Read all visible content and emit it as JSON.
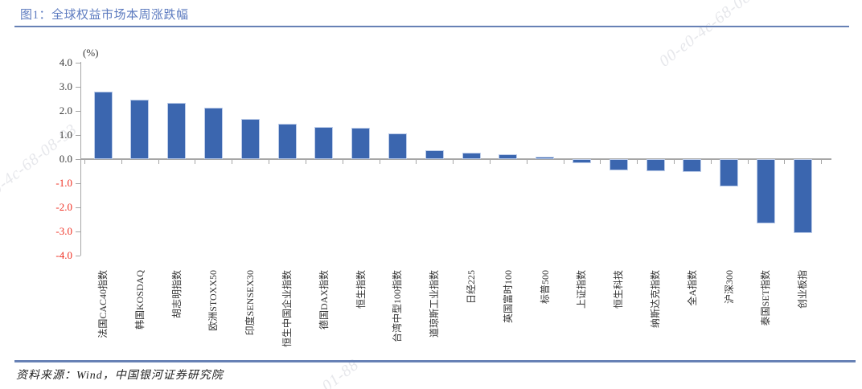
{
  "header": {
    "title": "图1：全球权益市场本周涨跌幅"
  },
  "chart": {
    "unit_label": "(%)"
  },
  "chart_data": {
    "type": "bar",
    "title": "图1：全球权益市场本周涨跌幅",
    "ylabel": "(%)",
    "xlabel": "",
    "ylim": [
      -4.0,
      4.0
    ],
    "ytick_step": 1.0,
    "grid": false,
    "legend": "none",
    "categories": [
      "法国CAC40指数",
      "韩国KOSDAQ",
      "胡志明指数",
      "欧洲STOXX50",
      "印度SENSEX30",
      "恒生中国企业指数",
      "德国DAX指数",
      "恒生指数",
      "台湾中型100指数",
      "道琼斯工业指数",
      "日经225",
      "英国富时100",
      "标普500",
      "上证指数",
      "恒生科技",
      "纳斯达克指数",
      "全A指数",
      "沪深300",
      "泰国SET指数",
      "创业板指"
    ],
    "values": [
      2.77,
      2.42,
      2.28,
      2.1,
      1.62,
      1.43,
      1.31,
      1.25,
      1.03,
      0.33,
      0.22,
      0.17,
      0.08,
      -0.14,
      -0.42,
      -0.48,
      -0.5,
      -1.08,
      -2.62,
      -3.02
    ]
  },
  "footer": {
    "source": "资料来源：Wind，中国银河证券研究院"
  },
  "watermarks": [
    {
      "text": "00-e0-4c-68-08-01"
    },
    {
      "text": "e0-4c-68-08-93"
    },
    {
      "text": "01-88"
    }
  ],
  "colors": {
    "title_blue": "#5E7CC0",
    "rule_blue": "#6781B5",
    "bar_blue": "#3B66AF",
    "axis_gray": "#A6A6A6",
    "label_dark": "#3B3B3B",
    "negative_red": "#EF3124"
  }
}
